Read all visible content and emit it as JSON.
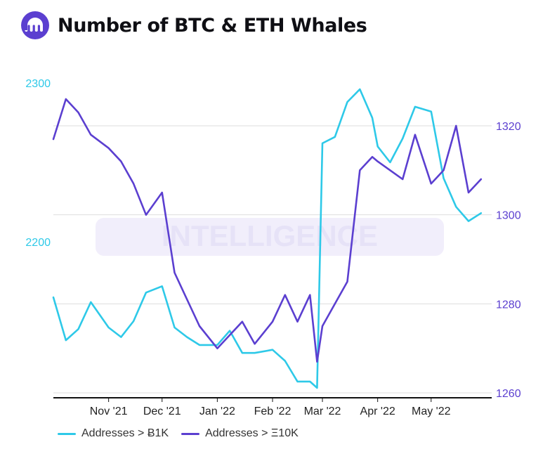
{
  "title": "Number of BTC & ETH Whales",
  "watermark": "INTELLIGENCE",
  "colors": {
    "btc": "#2ec9e8",
    "eth": "#5b3fd0",
    "grid": "#dddddd",
    "axis": "#111111",
    "watermark": "#e9e6f8"
  },
  "chart_data": {
    "type": "line",
    "title": "Number of BTC & ETH Whales",
    "x_ticks": [
      "Nov '21",
      "Dec '21",
      "Jan '22",
      "Feb '22",
      "Mar '22",
      "Apr '22",
      "May '22"
    ],
    "y_left": {
      "ticks": [
        "2300",
        "2200"
      ],
      "color": "#2ec9e8"
    },
    "y_right": {
      "ticks": [
        "1320",
        "1300",
        "1280",
        "1260"
      ],
      "color": "#5b3fd0"
    },
    "legend_position": "bottom-left",
    "grid": true,
    "series": [
      {
        "name": "Addresses > Ƀ1K",
        "axis": "left",
        "color": "#2ec9e8",
        "x": [
          "2021-10-01",
          "2021-10-08",
          "2021-10-15",
          "2021-10-22",
          "2021-11-01",
          "2021-11-08",
          "2021-11-15",
          "2021-11-22",
          "2021-12-01",
          "2021-12-08",
          "2021-12-15",
          "2021-12-22",
          "2022-01-01",
          "2022-01-08",
          "2022-01-15",
          "2022-01-22",
          "2022-02-01",
          "2022-02-08",
          "2022-02-15",
          "2022-02-22",
          "2022-02-26",
          "2022-03-01",
          "2022-03-08",
          "2022-03-15",
          "2022-03-22",
          "2022-03-29",
          "2022-04-01",
          "2022-04-08",
          "2022-04-15",
          "2022-04-22",
          "2022-05-01",
          "2022-05-08",
          "2022-05-15",
          "2022-05-22",
          "2022-05-29"
        ],
        "y": [
          2165,
          2138,
          2145,
          2162,
          2146,
          2140,
          2150,
          2168,
          2172,
          2146,
          2140,
          2135,
          2135,
          2144,
          2130,
          2130,
          2132,
          2125,
          2112,
          2112,
          2108,
          2262,
          2266,
          2288,
          2296,
          2278,
          2260,
          2250,
          2265,
          2285,
          2282,
          2240,
          2222,
          2213,
          2218
        ]
      },
      {
        "name": "Addresses > Ξ10K",
        "axis": "right",
        "color": "#5b3fd0",
        "x": [
          "2021-10-01",
          "2021-10-08",
          "2021-10-15",
          "2021-10-22",
          "2021-11-01",
          "2021-11-08",
          "2021-11-15",
          "2021-11-22",
          "2021-12-01",
          "2021-12-08",
          "2021-12-15",
          "2021-12-22",
          "2022-01-01",
          "2022-01-08",
          "2022-01-15",
          "2022-01-22",
          "2022-02-01",
          "2022-02-08",
          "2022-02-15",
          "2022-02-22",
          "2022-02-26",
          "2022-03-01",
          "2022-03-08",
          "2022-03-15",
          "2022-03-22",
          "2022-03-29",
          "2022-04-01",
          "2022-04-08",
          "2022-04-15",
          "2022-04-22",
          "2022-05-01",
          "2022-05-08",
          "2022-05-15",
          "2022-05-22",
          "2022-05-29"
        ],
        "y": [
          1317,
          1326,
          1323,
          1318,
          1315,
          1312,
          1307,
          1300,
          1305,
          1287,
          1281,
          1275,
          1270,
          1273,
          1276,
          1271,
          1276,
          1282,
          1276,
          1282,
          1267,
          1275,
          1280,
          1285,
          1310,
          1313,
          1312,
          1310,
          1308,
          1318,
          1307,
          1310,
          1320,
          1305,
          1308
        ]
      }
    ]
  }
}
